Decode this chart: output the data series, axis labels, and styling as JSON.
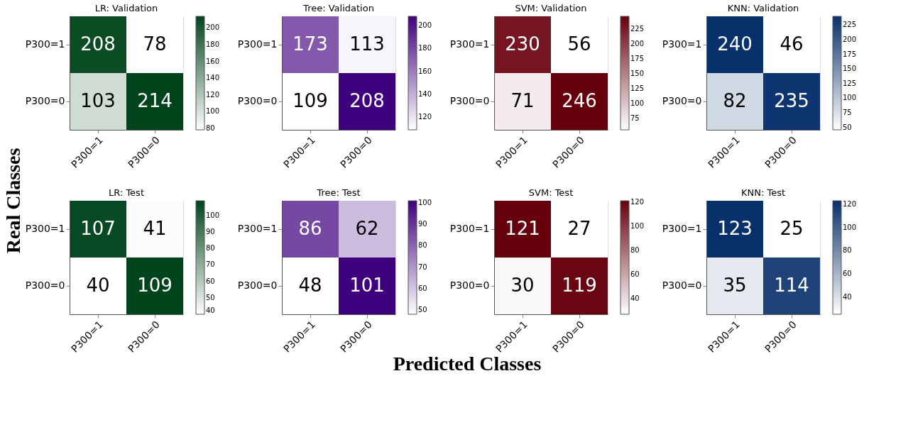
{
  "chart_data": [
    {
      "type": "heatmap",
      "title": "LR: Validation",
      "ylabel": "Real Classes",
      "categories": [
        "P300=1",
        "P300=0"
      ],
      "y_categories": [
        "P300=1",
        "P300=0"
      ],
      "cells": [
        [
          208,
          78
        ],
        [
          103,
          214
        ]
      ],
      "color": "#00441b",
      "clim": [
        78,
        214
      ],
      "cticks": [
        80,
        100,
        120,
        140,
        160,
        180,
        200
      ],
      "data_labels": true
    },
    {
      "type": "heatmap",
      "title": "Tree: Validation",
      "categories": [
        "P300=1",
        "P300=0"
      ],
      "y_categories": [
        "P300=1",
        "P300=0"
      ],
      "cells": [
        [
          173,
          113
        ],
        [
          109,
          208
        ]
      ],
      "color": "#3f007d",
      "clim": [
        109,
        208
      ],
      "cticks": [
        120,
        140,
        160,
        180,
        200
      ],
      "data_labels": true
    },
    {
      "type": "heatmap",
      "title": "SVM: Validation",
      "categories": [
        "P300=1",
        "P300=0"
      ],
      "y_categories": [
        "P300=1",
        "P300=0"
      ],
      "cells": [
        [
          230,
          56
        ],
        [
          71,
          246
        ]
      ],
      "color": "#67000d",
      "clim": [
        56,
        246
      ],
      "cticks": [
        75,
        100,
        125,
        150,
        175,
        200,
        225
      ],
      "data_labels": true
    },
    {
      "type": "heatmap",
      "title": "KNN: Validation",
      "categories": [
        "P300=1",
        "P300=0"
      ],
      "y_categories": [
        "P300=1",
        "P300=0"
      ],
      "cells": [
        [
          240,
          46
        ],
        [
          82,
          235
        ]
      ],
      "color": "#08306b",
      "clim": [
        46,
        240
      ],
      "cticks": [
        50,
        75,
        100,
        125,
        150,
        175,
        200,
        225
      ],
      "data_labels": true
    },
    {
      "type": "heatmap",
      "title": "LR: Test",
      "categories": [
        "P300=1",
        "P300=0"
      ],
      "y_categories": [
        "P300=1",
        "P300=0"
      ],
      "cells": [
        [
          107,
          41
        ],
        [
          40,
          109
        ]
      ],
      "color": "#00441b",
      "clim": [
        40,
        109
      ],
      "cticks": [
        40,
        50,
        60,
        70,
        80,
        90,
        100
      ],
      "data_labels": true
    },
    {
      "type": "heatmap",
      "title": "Tree: Test",
      "xlabel": "Predicted Classes",
      "categories": [
        "P300=1",
        "P300=0"
      ],
      "y_categories": [
        "P300=1",
        "P300=0"
      ],
      "cells": [
        [
          86,
          62
        ],
        [
          48,
          101
        ]
      ],
      "color": "#3f007d",
      "clim": [
        48,
        101
      ],
      "cticks": [
        50,
        60,
        70,
        80,
        90,
        100
      ],
      "data_labels": true
    },
    {
      "type": "heatmap",
      "title": "SVM: Test",
      "categories": [
        "P300=1",
        "P300=0"
      ],
      "y_categories": [
        "P300=1",
        "P300=0"
      ],
      "cells": [
        [
          121,
          27
        ],
        [
          30,
          119
        ]
      ],
      "color": "#67000d",
      "clim": [
        27,
        121
      ],
      "cticks": [
        40,
        60,
        80,
        100,
        120
      ],
      "data_labels": true
    },
    {
      "type": "heatmap",
      "title": "KNN: Test",
      "categories": [
        "P300=1",
        "P300=0"
      ],
      "y_categories": [
        "P300=1",
        "P300=0"
      ],
      "cells": [
        [
          123,
          25
        ],
        [
          35,
          114
        ]
      ],
      "color": "#08306b",
      "clim": [
        25,
        123
      ],
      "cticks": [
        40,
        60,
        80,
        100,
        120
      ],
      "data_labels": true
    }
  ]
}
